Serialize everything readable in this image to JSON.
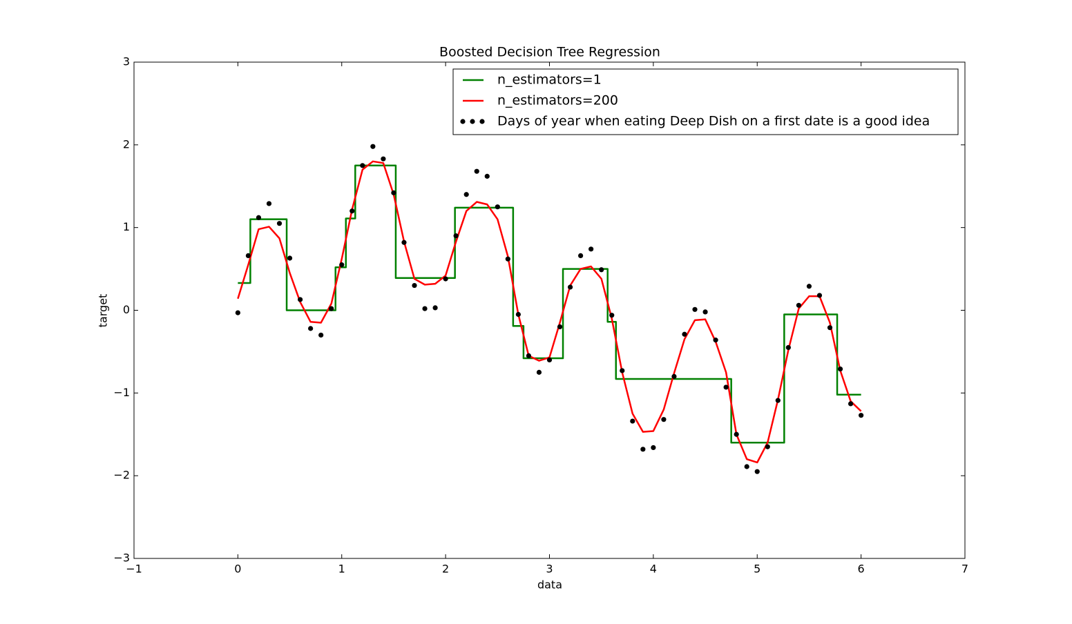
{
  "chart_data": {
    "type": "line",
    "title": "Boosted Decision Tree Regression",
    "xlabel": "data",
    "ylabel": "target",
    "xlim": [
      -1,
      7
    ],
    "ylim": [
      -3,
      3
    ],
    "xticks": [
      {
        "value": -1,
        "label": "−1"
      },
      0,
      1,
      2,
      3,
      4,
      5,
      6,
      7
    ],
    "yticks": [
      {
        "value": -3,
        "label": "−3"
      },
      {
        "value": -2,
        "label": "−2"
      },
      {
        "value": -1,
        "label": "−1"
      },
      0,
      1,
      2,
      3
    ],
    "grid": false,
    "legend": "upper right",
    "series": [
      {
        "name": "n_estimators=1",
        "color": "#008000",
        "style": "line",
        "x": [
          0,
          0.12,
          0.12,
          0.47,
          0.47,
          0.94,
          0.94,
          1.04,
          1.04,
          1.13,
          1.13,
          1.52,
          1.52,
          2.09,
          2.09,
          2.65,
          2.65,
          2.75,
          2.75,
          3.13,
          3.13,
          3.56,
          3.56,
          3.64,
          3.64,
          4.75,
          4.75,
          5.26,
          5.26,
          5.77,
          5.77,
          6.0
        ],
        "values": [
          0.33,
          0.33,
          1.1,
          1.1,
          0,
          0,
          0.52,
          0.52,
          1.11,
          1.11,
          1.75,
          1.75,
          0.39,
          0.39,
          1.24,
          1.24,
          -0.19,
          -0.19,
          -0.58,
          -0.58,
          0.5,
          0.5,
          -0.14,
          -0.14,
          -0.83,
          -0.83,
          -1.6,
          -1.6,
          -0.05,
          -0.05,
          -1.02,
          -1.02
        ]
      },
      {
        "name": "n_estimators=200",
        "color": "#ff0000",
        "style": "line",
        "x": [
          0,
          0.1,
          0.2,
          0.3,
          0.4,
          0.5,
          0.6,
          0.7,
          0.8,
          0.9,
          1.0,
          1.1,
          1.2,
          1.3,
          1.4,
          1.5,
          1.6,
          1.7,
          1.8,
          1.9,
          2.0,
          2.1,
          2.2,
          2.3,
          2.4,
          2.5,
          2.6,
          2.7,
          2.8,
          2.9,
          3.0,
          3.1,
          3.2,
          3.3,
          3.4,
          3.5,
          3.6,
          3.7,
          3.8,
          3.9,
          4.0,
          4.1,
          4.2,
          4.3,
          4.4,
          4.5,
          4.6,
          4.7,
          4.8,
          4.9,
          5.0,
          5.1,
          5.2,
          5.3,
          5.4,
          5.5,
          5.6,
          5.7,
          5.8,
          5.9,
          6.0
        ],
        "values": [
          0.14,
          0.55,
          0.98,
          1.01,
          0.87,
          0.45,
          0.1,
          -0.14,
          -0.15,
          0.08,
          0.62,
          1.22,
          1.7,
          1.8,
          1.78,
          1.4,
          0.83,
          0.38,
          0.31,
          0.32,
          0.42,
          0.83,
          1.2,
          1.31,
          1.28,
          1.1,
          0.65,
          -0.05,
          -0.55,
          -0.61,
          -0.57,
          -0.15,
          0.3,
          0.5,
          0.53,
          0.38,
          -0.1,
          -0.75,
          -1.25,
          -1.47,
          -1.46,
          -1.2,
          -0.76,
          -0.35,
          -0.12,
          -0.11,
          -0.38,
          -0.75,
          -1.5,
          -1.8,
          -1.84,
          -1.6,
          -1.08,
          -0.48,
          0.02,
          0.17,
          0.17,
          -0.15,
          -0.73,
          -1.1,
          -1.22
        ]
      },
      {
        "name": "Days of year when eating Deep Dish on a first date is a good idea",
        "color": "#000000",
        "style": "points",
        "x": [
          0,
          0.1,
          0.2,
          0.3,
          0.4,
          0.5,
          0.6,
          0.7,
          0.8,
          0.9,
          1.0,
          1.1,
          1.2,
          1.3,
          1.4,
          1.5,
          1.6,
          1.7,
          1.8,
          1.9,
          2.0,
          2.1,
          2.2,
          2.3,
          2.4,
          2.5,
          2.6,
          2.7,
          2.8,
          2.9,
          3.0,
          3.1,
          3.2,
          3.3,
          3.4,
          3.5,
          3.6,
          3.7,
          3.8,
          3.9,
          4.0,
          4.1,
          4.2,
          4.3,
          4.4,
          4.5,
          4.6,
          4.7,
          4.8,
          4.9,
          5.0,
          5.1,
          5.2,
          5.3,
          5.4,
          5.5,
          5.6,
          5.7,
          5.8,
          5.9,
          6.0
        ],
        "values": [
          -0.03,
          0.66,
          1.12,
          1.29,
          1.05,
          0.63,
          0.13,
          -0.22,
          -0.3,
          0.02,
          0.55,
          1.2,
          1.75,
          1.98,
          1.83,
          1.42,
          0.82,
          0.3,
          0.02,
          0.03,
          0.38,
          0.9,
          1.4,
          1.68,
          1.62,
          1.25,
          0.62,
          -0.05,
          -0.55,
          -0.75,
          -0.6,
          -0.2,
          0.28,
          0.66,
          0.74,
          0.49,
          -0.06,
          -0.73,
          -1.34,
          -1.68,
          -1.66,
          -1.32,
          -0.8,
          -0.29,
          0.01,
          -0.02,
          -0.36,
          -0.93,
          -1.5,
          -1.89,
          -1.95,
          -1.65,
          -1.09,
          -0.45,
          0.06,
          0.29,
          0.18,
          -0.21,
          -0.71,
          -1.13,
          -1.27
        ]
      }
    ]
  }
}
